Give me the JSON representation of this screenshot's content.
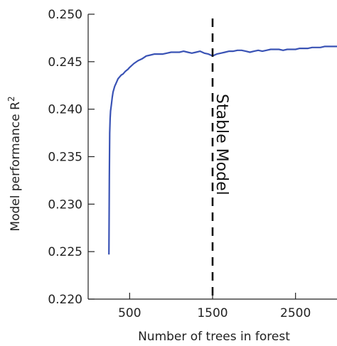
{
  "chart_data": {
    "type": "line",
    "title": "",
    "xlabel": "Number of trees in forest",
    "ylabel": "Model performance R",
    "ylabel_superscript": "2",
    "xlim": [
      0,
      3000
    ],
    "ylim": [
      0.22,
      0.25
    ],
    "xticks": [
      500,
      1500,
      2500
    ],
    "xtick_labels": [
      "500",
      "1500",
      "2500"
    ],
    "yticks": [
      0.22,
      0.225,
      0.23,
      0.235,
      0.24,
      0.245,
      0.25
    ],
    "ytick_labels": [
      "0.220",
      "0.225",
      "0.230",
      "0.235",
      "0.240",
      "0.245",
      "0.250"
    ],
    "grid": false,
    "legend": "none",
    "series": [
      {
        "color": "#3a53b5",
        "x": [
          250,
          255,
          260,
          265,
          270,
          280,
          290,
          300,
          320,
          340,
          360,
          380,
          400,
          420,
          450,
          480,
          500,
          550,
          600,
          650,
          700,
          750,
          800,
          850,
          900,
          950,
          1000,
          1050,
          1100,
          1150,
          1200,
          1250,
          1300,
          1350,
          1400,
          1450,
          1500,
          1550,
          1600,
          1650,
          1700,
          1750,
          1800,
          1850,
          1900,
          1950,
          2000,
          2050,
          2100,
          2150,
          2200,
          2250,
          2300,
          2350,
          2400,
          2450,
          2500,
          2550,
          2600,
          2650,
          2700,
          2750,
          2800,
          2850,
          2900,
          2950,
          3000
        ],
        "y": [
          0.2247,
          0.233,
          0.2375,
          0.239,
          0.2398,
          0.2405,
          0.2412,
          0.2418,
          0.2424,
          0.2428,
          0.2432,
          0.2434,
          0.2436,
          0.2437,
          0.244,
          0.2442,
          0.2444,
          0.2448,
          0.2451,
          0.2453,
          0.2456,
          0.2457,
          0.2458,
          0.2458,
          0.2458,
          0.2459,
          0.246,
          0.246,
          0.246,
          0.2461,
          0.246,
          0.2459,
          0.246,
          0.2461,
          0.2459,
          0.2458,
          0.2456,
          0.2458,
          0.2459,
          0.246,
          0.2461,
          0.2461,
          0.2462,
          0.2462,
          0.2461,
          0.246,
          0.2461,
          0.2462,
          0.2461,
          0.2462,
          0.2463,
          0.2463,
          0.2463,
          0.2462,
          0.2463,
          0.2463,
          0.2463,
          0.2464,
          0.2464,
          0.2464,
          0.2465,
          0.2465,
          0.2465,
          0.2466,
          0.2466,
          0.2466,
          0.2466
        ]
      }
    ],
    "annotations": [
      {
        "type": "vline",
        "x": 1500,
        "style": "dashed",
        "color": "#111111",
        "label": "Stable Model"
      }
    ]
  }
}
